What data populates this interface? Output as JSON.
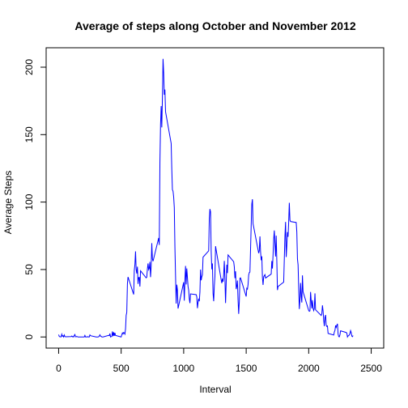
{
  "chart_data": {
    "type": "line",
    "title": "Average of steps along October and November 2012",
    "x_label": "Interval",
    "y_label": "Average Steps",
    "x": [
      0,
      5,
      10,
      15,
      20,
      25,
      30,
      35,
      40,
      45,
      50,
      55,
      100,
      105,
      110,
      115,
      120,
      125,
      130,
      135,
      140,
      145,
      150,
      155,
      200,
      205,
      210,
      215,
      220,
      225,
      230,
      235,
      240,
      245,
      250,
      255,
      300,
      305,
      310,
      315,
      320,
      325,
      330,
      335,
      340,
      345,
      350,
      355,
      400,
      405,
      410,
      415,
      420,
      425,
      430,
      435,
      440,
      445,
      450,
      455,
      500,
      505,
      510,
      515,
      520,
      525,
      530,
      535,
      540,
      545,
      550,
      555,
      600,
      605,
      610,
      615,
      620,
      625,
      630,
      635,
      640,
      645,
      650,
      655,
      700,
      705,
      710,
      715,
      720,
      725,
      730,
      735,
      740,
      745,
      750,
      755,
      800,
      805,
      810,
      815,
      820,
      825,
      830,
      835,
      840,
      845,
      850,
      855,
      900,
      905,
      910,
      915,
      920,
      925,
      930,
      935,
      940,
      945,
      950,
      955,
      1000,
      1005,
      1010,
      1015,
      1020,
      1025,
      1030,
      1035,
      1040,
      1045,
      1050,
      1055,
      1100,
      1105,
      1110,
      1115,
      1120,
      1125,
      1130,
      1135,
      1140,
      1145,
      1150,
      1155,
      1200,
      1205,
      1210,
      1215,
      1220,
      1225,
      1230,
      1235,
      1240,
      1245,
      1250,
      1255,
      1300,
      1305,
      1310,
      1315,
      1320,
      1325,
      1330,
      1335,
      1340,
      1345,
      1350,
      1355,
      1400,
      1405,
      1410,
      1415,
      1420,
      1425,
      1430,
      1435,
      1440,
      1445,
      1450,
      1455,
      1500,
      1505,
      1510,
      1515,
      1520,
      1525,
      1530,
      1535,
      1540,
      1545,
      1550,
      1555,
      1600,
      1605,
      1610,
      1615,
      1620,
      1625,
      1630,
      1635,
      1640,
      1645,
      1650,
      1655,
      1700,
      1705,
      1710,
      1715,
      1720,
      1725,
      1730,
      1735,
      1740,
      1745,
      1750,
      1755,
      1800,
      1805,
      1810,
      1815,
      1820,
      1825,
      1830,
      1835,
      1840,
      1845,
      1850,
      1855,
      1900,
      1905,
      1910,
      1915,
      1920,
      1925,
      1930,
      1935,
      1940,
      1945,
      1950,
      1955,
      2000,
      2005,
      2010,
      2015,
      2020,
      2025,
      2030,
      2035,
      2040,
      2045,
      2050,
      2055,
      2100,
      2105,
      2110,
      2115,
      2120,
      2125,
      2130,
      2135,
      2140,
      2145,
      2150,
      2155,
      2200,
      2205,
      2210,
      2215,
      2220,
      2225,
      2230,
      2235,
      2240,
      2245,
      2250,
      2255,
      2300,
      2305,
      2310,
      2315,
      2320,
      2325,
      2330,
      2335,
      2340,
      2345,
      2350,
      2355
    ],
    "series": [
      {
        "color": "#0000ff",
        "values": [
          1.72,
          0.34,
          0.13,
          0.15,
          0.08,
          2.09,
          0.53,
          0.87,
          0,
          1.47,
          0.3,
          0.13,
          0.32,
          0.68,
          0.15,
          0.34,
          0,
          1.11,
          1.83,
          0.17,
          0.17,
          0.38,
          0.26,
          0,
          0,
          0,
          1.13,
          0,
          0,
          0.13,
          0,
          0.23,
          0,
          0,
          1.55,
          0.94,
          0,
          0,
          0,
          0,
          0.21,
          0.62,
          1.62,
          0.58,
          0.49,
          0.08,
          0,
          0,
          1.19,
          0.94,
          2.57,
          0,
          0.34,
          0.36,
          4.11,
          0.66,
          3.49,
          0.83,
          3.11,
          1.11,
          0,
          1.57,
          3,
          2.25,
          3.32,
          2.96,
          2.09,
          6.06,
          16.02,
          18.34,
          39.45,
          44.49,
          31.49,
          49.26,
          53.77,
          63.45,
          49.96,
          47.08,
          52.15,
          39.34,
          44.02,
          44.17,
          37.36,
          49.04,
          43.81,
          44.38,
          50.51,
          54.51,
          49.92,
          50.98,
          55.68,
          44.32,
          52.26,
          69.55,
          57.85,
          56.15,
          73.38,
          68.21,
          129.43,
          157.53,
          171.15,
          155.4,
          177.3,
          206.17,
          195.92,
          179.57,
          183.4,
          167.02,
          143.45,
          124.04,
          109.11,
          108.11,
          103.72,
          95.96,
          66.21,
          45.23,
          24.79,
          38.75,
          34.98,
          21.06,
          40.57,
          26.98,
          42.42,
          52.66,
          38.92,
          50.79,
          44.28,
          37.42,
          34.7,
          28.34,
          25.09,
          31.94,
          31.36,
          29.68,
          21.32,
          25.55,
          28.38,
          26.47,
          33.43,
          49.98,
          42.04,
          44.6,
          46.04,
          59.19,
          63.87,
          87.7,
          94.85,
          92.77,
          63.4,
          50.17,
          54.47,
          32.42,
          26.53,
          37.74,
          45.06,
          67.28,
          42.34,
          39.88,
          43.26,
          40.98,
          46.25,
          56.43,
          42.75,
          25.13,
          39.96,
          53.55,
          47.32,
          60.81,
          55.75,
          51.96,
          43.58,
          48.7,
          35.47,
          37.55,
          41.85,
          27.51,
          17.11,
          26.08,
          43.62,
          43.77,
          30.02,
          36.08,
          35.49,
          38.85,
          45.96,
          47.75,
          48.13,
          65.32,
          82.91,
          98.66,
          102.11,
          83.96,
          62.13,
          64.13,
          74.55,
          63.17,
          56.91,
          59.77,
          43.87,
          38.57,
          44.66,
          45.45,
          46.21,
          43.68,
          46.62,
          56.3,
          50.72,
          61.23,
          72.72,
          78.94,
          68.94,
          59.66,
          75.09,
          56.51,
          34.77,
          37.45,
          40.68,
          58.02,
          74.7,
          85.32,
          59.26,
          67.77,
          77.7,
          74.25,
          85.34,
          99.45,
          86.58,
          85.6,
          84.87,
          77.83,
          58.04,
          53.36,
          36.32,
          20.72,
          27.4,
          40.02,
          30.21,
          25.55,
          45.66,
          33.53,
          19.62,
          19.02,
          19.34,
          33.34,
          26.81,
          21.17,
          27.3,
          21.34,
          19.55,
          21.32,
          32.3,
          20.15,
          15.94,
          17.23,
          23.45,
          19.25,
          12.45,
          8.02,
          14.66,
          16.3,
          8.68,
          7.79,
          8.13,
          2.62,
          1.45,
          3.68,
          4.81,
          8.51,
          7.08,
          8.7,
          9.75,
          2.21,
          0.32,
          0.11,
          1.6,
          4.6,
          3.3,
          2.85,
          0,
          0.83,
          0.96,
          1.58,
          2.6,
          4.7,
          3.3,
          0.64,
          0.23,
          1.08
        ]
      }
    ],
    "xlim": [
      -100,
      2600
    ],
    "ylim": [
      -8.25,
      214.4
    ],
    "xticks": [
      0,
      500,
      1000,
      1500,
      2000,
      2500
    ],
    "yticks": [
      0,
      50,
      100,
      150,
      200
    ]
  }
}
